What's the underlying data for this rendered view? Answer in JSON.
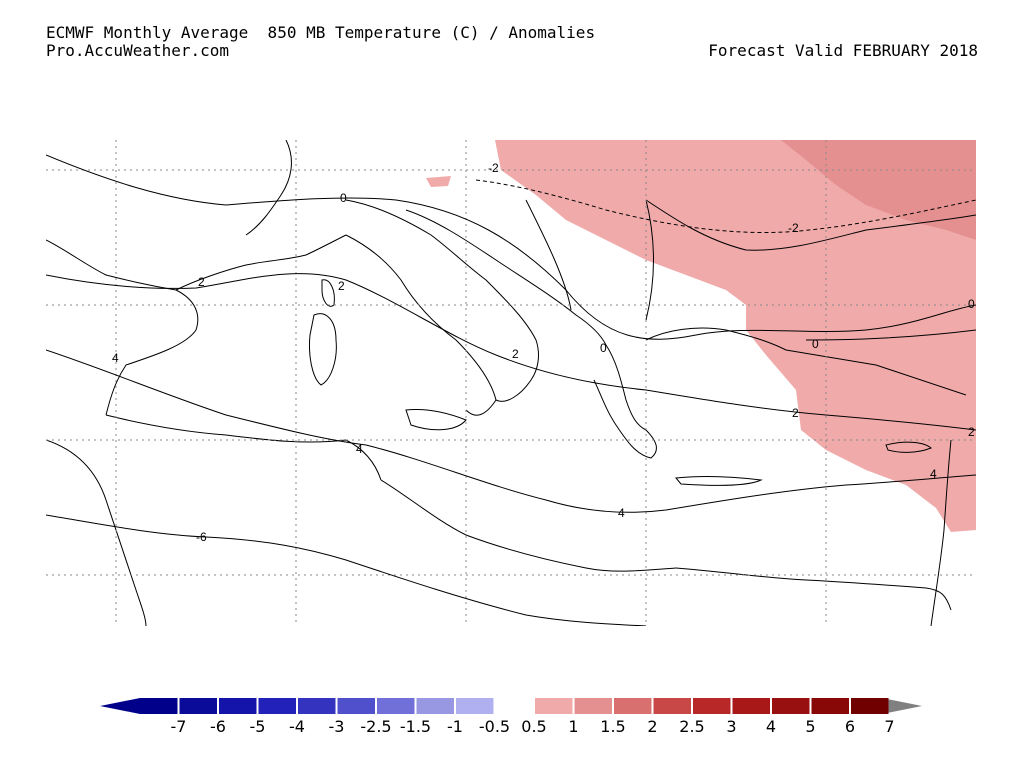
{
  "header": {
    "title": "ECMWF Monthly Average  850 MB Temperature (C) / Anomalies",
    "source": "Pro.AccuWeather.com",
    "valid": "Forecast Valid FEBRUARY 2018"
  },
  "contours": {
    "labels": [
      "-2",
      "-2",
      "0",
      "0",
      "0",
      "0",
      "2",
      "2",
      "2",
      "2",
      "2",
      "4",
      "4",
      "4",
      "-6",
      "4"
    ]
  },
  "legend": {
    "colors": [
      "#00008b",
      "#0b0b9a",
      "#1414aa",
      "#2222bb",
      "#3333c0",
      "#5050cc",
      "#7070d8",
      "#9898e2",
      "#b0b0f0",
      "#ffffff",
      "#f0aaaa",
      "#e49090",
      "#d87070",
      "#c84848",
      "#b82828",
      "#a81818",
      "#981010",
      "#880808",
      "#700000"
    ],
    "labels": [
      "-7",
      "-6",
      "-5",
      "-4",
      "-3",
      "-2.5",
      "-1.5",
      "-1",
      "-0.5",
      "0.5",
      "1",
      "1.5",
      "2",
      "2.5",
      "3",
      "4",
      "5",
      "6",
      "7"
    ],
    "left_arrow_color": "#00008b",
    "right_arrow_color": "#808080"
  },
  "colors": {
    "anomaly_light": "#f0aaaa",
    "anomaly_medium": "#e49090"
  }
}
